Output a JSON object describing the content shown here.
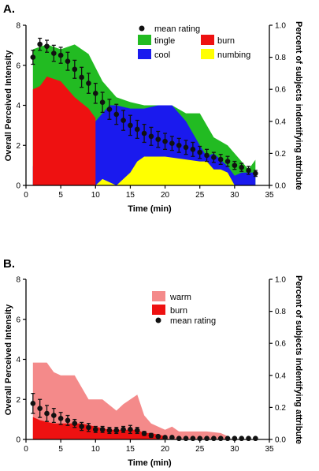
{
  "figure": {
    "background": "#ffffff"
  },
  "colors": {
    "tingle": "#22bb22",
    "burn": "#ee1111",
    "cool": "#1a1aee",
    "numbing": "#ffff00",
    "warm": "#f48a8a",
    "mean": "#111111"
  },
  "chart_data": [
    {
      "panel_label": "A.",
      "type": "area",
      "xlabel": "Time (min)",
      "ylabel_left": "Overall Perceived Intensity",
      "ylabel_right": "Percent of subjects indentifying attribute",
      "xlim": [
        0,
        35
      ],
      "ylim_left": [
        0,
        8
      ],
      "ylim_right": [
        0,
        1.0
      ],
      "xticks": [
        "0",
        "5",
        "10",
        "15",
        "20",
        "25",
        "30",
        "35"
      ],
      "yticks_left": [
        "0",
        "2",
        "4",
        "6",
        "8"
      ],
      "yticks_right": [
        "0.0",
        "0.2",
        "0.4",
        "0.6",
        "0.8",
        "1.0"
      ],
      "legend": [
        {
          "key": "mean",
          "label": "mean rating"
        },
        {
          "key": "tingle",
          "label": "tingle"
        },
        {
          "key": "burn",
          "label": "burn"
        },
        {
          "key": "cool",
          "label": "cool"
        },
        {
          "key": "numbing",
          "label": "numbing"
        }
      ],
      "series": [
        {
          "name": "numbing",
          "axis": "right",
          "stack_base": "zero",
          "x": [
            1,
            10,
            11,
            13,
            15,
            16,
            17,
            20,
            25,
            26,
            27,
            28,
            29,
            30
          ],
          "y": [
            0,
            0,
            0.04,
            0,
            0.08,
            0.15,
            0.18,
            0.18,
            0.15,
            0.15,
            0.1,
            0.1,
            0.08,
            0
          ]
        },
        {
          "name": "cool",
          "axis": "right",
          "stack_base": "zero",
          "x": [
            1,
            3,
            5,
            7,
            9,
            10,
            11,
            12,
            13,
            15,
            17,
            19,
            21,
            23,
            25,
            26,
            27,
            29,
            30,
            31,
            33
          ],
          "y": [
            0.12,
            0.2,
            0.22,
            0.3,
            0.35,
            0.4,
            0.45,
            0.5,
            0.5,
            0.48,
            0.48,
            0.5,
            0.5,
            0.4,
            0.25,
            0.18,
            0.2,
            0.12,
            0.06,
            0.08,
            0.08
          ]
        },
        {
          "name": "burn",
          "axis": "right",
          "stack_base": "zero",
          "x": [
            1,
            2,
            3,
            5,
            7,
            9,
            10
          ],
          "y": [
            0.6,
            0.62,
            0.68,
            0.65,
            0.55,
            0.48,
            0.42
          ]
        },
        {
          "name": "tingle",
          "axis": "right",
          "stack_base": "zero",
          "x": [
            1,
            3,
            5,
            7,
            9,
            11,
            13,
            15,
            17,
            19,
            21,
            23,
            25,
            27,
            29,
            31,
            32,
            33
          ],
          "y": [
            0.85,
            0.88,
            0.85,
            0.88,
            0.82,
            0.65,
            0.55,
            0.52,
            0.5,
            0.5,
            0.5,
            0.45,
            0.45,
            0.3,
            0.25,
            0.15,
            0.1,
            0.16
          ]
        },
        {
          "name": "mean rating",
          "axis": "left",
          "x": [
            1,
            2,
            3,
            4,
            5,
            6,
            7,
            8,
            9,
            10,
            11,
            12,
            13,
            14,
            15,
            16,
            17,
            18,
            19,
            20,
            21,
            22,
            23,
            24,
            25,
            26,
            27,
            28,
            29,
            30,
            31,
            32,
            33
          ],
          "y": [
            6.4,
            7.05,
            6.95,
            6.6,
            6.5,
            6.2,
            5.8,
            5.4,
            5.1,
            4.6,
            4.15,
            3.8,
            3.55,
            3.25,
            3.0,
            2.8,
            2.6,
            2.45,
            2.3,
            2.2,
            2.1,
            2.0,
            1.9,
            1.8,
            1.65,
            1.5,
            1.4,
            1.3,
            1.2,
            1.0,
            0.9,
            0.75,
            0.6
          ],
          "err": [
            0.35,
            0.3,
            0.3,
            0.4,
            0.4,
            0.45,
            0.45,
            0.5,
            0.5,
            0.5,
            0.5,
            0.5,
            0.5,
            0.5,
            0.5,
            0.45,
            0.45,
            0.45,
            0.4,
            0.4,
            0.35,
            0.35,
            0.35,
            0.35,
            0.3,
            0.3,
            0.25,
            0.25,
            0.25,
            0.2,
            0.2,
            0.2,
            0.15
          ]
        }
      ]
    },
    {
      "panel_label": "B.",
      "type": "area",
      "xlabel": "Time (min)",
      "ylabel_left": "Overall Perceived Intensity",
      "ylabel_right": "Percent of subjects indentifying attribute",
      "xlim": [
        0,
        35
      ],
      "ylim_left": [
        0,
        8
      ],
      "ylim_right": [
        0,
        1.0
      ],
      "xticks": [
        "0",
        "5",
        "10",
        "15",
        "20",
        "25",
        "30",
        "35"
      ],
      "yticks_left": [
        "0",
        "2",
        "4",
        "6",
        "8"
      ],
      "yticks_right": [
        "0.0",
        "0.2",
        "0.4",
        "0.6",
        "0.8",
        "1.0"
      ],
      "legend": [
        {
          "key": "warm",
          "label": "warm"
        },
        {
          "key": "burn",
          "label": "burn"
        },
        {
          "key": "mean",
          "label": "mean rating"
        }
      ],
      "series": [
        {
          "name": "warm",
          "axis": "right",
          "stack_base": "zero",
          "x": [
            1,
            3,
            4,
            5,
            7,
            9,
            11,
            13,
            14,
            15,
            16,
            17,
            18,
            19,
            20,
            21,
            22,
            24,
            26,
            28,
            29,
            29.5
          ],
          "y": [
            0.48,
            0.48,
            0.42,
            0.4,
            0.4,
            0.25,
            0.25,
            0.18,
            0.22,
            0.25,
            0.28,
            0.15,
            0.1,
            0.08,
            0.06,
            0.08,
            0.05,
            0.05,
            0.05,
            0.04,
            0.02,
            0
          ]
        },
        {
          "name": "burn",
          "axis": "right",
          "stack_base": "zero",
          "x": [
            1,
            2,
            4,
            6,
            8,
            10,
            12,
            14,
            16,
            17,
            18,
            19,
            20,
            20.5
          ],
          "y": [
            0.14,
            0.12,
            0.1,
            0.1,
            0.1,
            0.08,
            0.06,
            0.06,
            0.06,
            0.04,
            0.04,
            0.03,
            0.02,
            0
          ]
        },
        {
          "name": "mean rating",
          "axis": "left",
          "x": [
            1,
            2,
            3,
            4,
            5,
            6,
            7,
            8,
            9,
            10,
            11,
            12,
            13,
            14,
            15,
            16,
            17,
            18,
            19,
            20,
            21,
            22,
            23,
            24,
            25,
            26,
            27,
            28,
            29,
            30,
            31,
            32,
            33
          ],
          "y": [
            1.8,
            1.55,
            1.3,
            1.2,
            1.05,
            0.95,
            0.8,
            0.65,
            0.6,
            0.5,
            0.5,
            0.45,
            0.45,
            0.5,
            0.5,
            0.45,
            0.3,
            0.2,
            0.15,
            0.1,
            0.1,
            0.05,
            0.05,
            0.05,
            0.05,
            0.05,
            0.05,
            0.05,
            0.05,
            0.05,
            0.05,
            0.05,
            0.05
          ],
          "err": [
            0.5,
            0.45,
            0.4,
            0.35,
            0.3,
            0.25,
            0.2,
            0.2,
            0.2,
            0.15,
            0.15,
            0.15,
            0.15,
            0.15,
            0.2,
            0.15,
            0.1,
            0.1,
            0.05,
            0.05,
            0.05,
            0,
            0,
            0,
            0,
            0,
            0,
            0,
            0,
            0,
            0,
            0,
            0
          ]
        }
      ]
    }
  ]
}
